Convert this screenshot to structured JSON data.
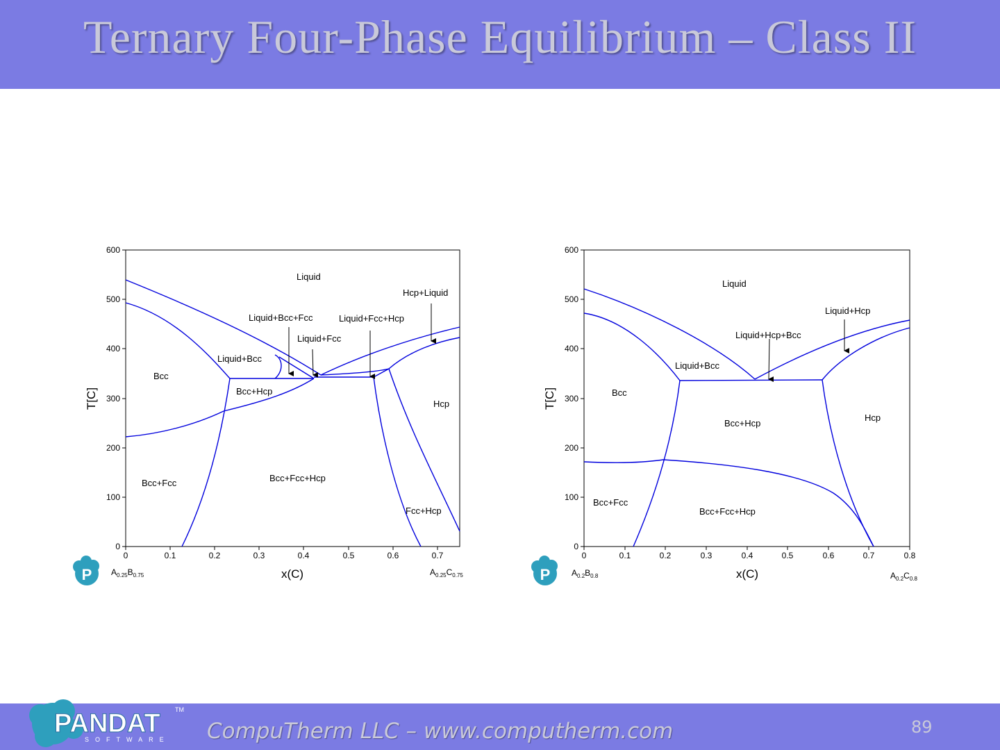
{
  "slide": {
    "title": "Ternary Four-Phase Equilibrium – Class II",
    "footer": "CompuTherm LLC – www.computherm.com",
    "page_number": "89",
    "logo_text": "PANDAT",
    "logo_sub": "SOFTWARE",
    "logo_tm": "TM",
    "accent_color": "#7b7be3",
    "curve_color": "#0000dd"
  },
  "left_chart": {
    "xlabel": "x(C)",
    "ylabel": "T[C]",
    "x_ticks": [
      "0",
      "0.1",
      "0.2",
      "0.3",
      "0.4",
      "0.5",
      "0.6",
      "0.7"
    ],
    "y_ticks": [
      "0",
      "100",
      "200",
      "300",
      "400",
      "500",
      "600"
    ],
    "xlim": [
      0,
      0.75
    ],
    "ylim": [
      0,
      600
    ],
    "left_end": {
      "base": "A",
      "sub1": "0.25",
      "base2": "B",
      "sub2": "0.75"
    },
    "right_end": {
      "base": "A",
      "sub1": "0.25",
      "base2": "C",
      "sub2": "0.75"
    },
    "labels": {
      "liquid": "Liquid",
      "hcp_liquid": "Hcp+Liquid",
      "liquid_bcc_fcc": "Liquid+Bcc+Fcc",
      "liquid_fcc_hcp": "Liquid+Fcc+Hcp",
      "liquid_fcc": "Liquid+Fcc",
      "liquid_bcc": "Liquid+Bcc",
      "bcc": "Bcc",
      "bcc_hcp": "Bcc+Hcp",
      "hcp": "Hcp",
      "bcc_fcc": "Bcc+Fcc",
      "bcc_fcc_hcp": "Bcc+Fcc+Hcp",
      "fcc_hcp": "Fcc+Hcp"
    }
  },
  "right_chart": {
    "xlabel": "x(C)",
    "ylabel": "T[C]",
    "x_ticks": [
      "0",
      "0.1",
      "0.2",
      "0.3",
      "0.4",
      "0.5",
      "0.6",
      "0.7",
      "0.8"
    ],
    "y_ticks": [
      "0",
      "100",
      "200",
      "300",
      "400",
      "500",
      "600"
    ],
    "xlim": [
      0,
      0.8
    ],
    "ylim": [
      0,
      600
    ],
    "left_end": {
      "base": "A",
      "sub1": "0.2",
      "base2": "B",
      "sub2": "0.8"
    },
    "right_end": {
      "base": "A",
      "sub1": "0.2",
      "base2": "C",
      "sub2": "0.8"
    },
    "labels": {
      "liquid": "Liquid",
      "liquid_hcp": "Liquid+Hcp",
      "liquid_hcp_bcc": "Liquid+Hcp+Bcc",
      "liquid_bcc": "Liquid+Bcc",
      "bcc": "Bcc",
      "bcc_hcp": "Bcc+Hcp",
      "hcp": "Hcp",
      "bcc_fcc": "Bcc+Fcc",
      "bcc_fcc_hcp": "Bcc+Fcc+Hcp"
    }
  }
}
